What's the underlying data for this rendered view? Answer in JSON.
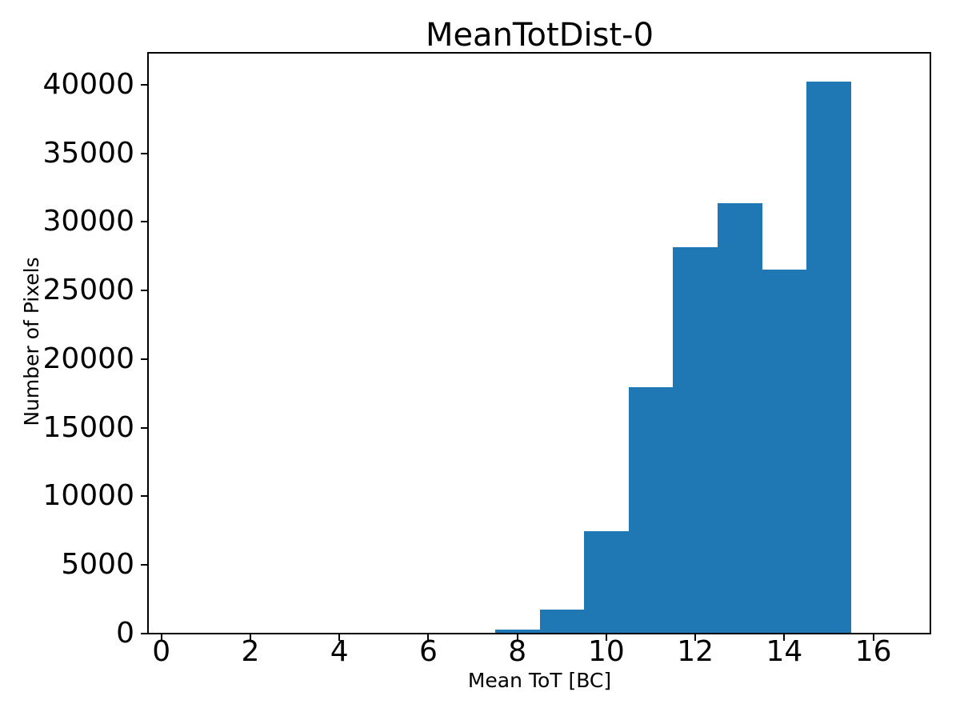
{
  "chart_data": {
    "type": "bar",
    "subtype": "histogram",
    "title": "MeanTotDist-0",
    "xlabel": "Mean ToT [BC]",
    "ylabel": "Number of Pixels",
    "bar_color": "#1f77b4",
    "text_color": "#000000",
    "background_color": "#ffffff",
    "bin_edges": [
      7.5,
      8.5,
      9.5,
      10.5,
      11.5,
      12.5,
      13.5,
      14.5,
      15.5
    ],
    "counts": [
      290,
      1750,
      7470,
      17980,
      28160,
      31380,
      26540,
      40230
    ],
    "xlim": [
      -0.3,
      17.3
    ],
    "ylim": [
      0,
      42330
    ],
    "xticks": [
      0,
      2,
      4,
      6,
      8,
      10,
      12,
      14,
      16
    ],
    "xtick_labels": [
      "0",
      "2",
      "4",
      "6",
      "8",
      "10",
      "12",
      "14",
      "16"
    ],
    "yticks": [
      0,
      5000,
      10000,
      15000,
      20000,
      25000,
      30000,
      35000,
      40000
    ],
    "ytick_labels": [
      "0",
      "5000",
      "10000",
      "15000",
      "20000",
      "25000",
      "30000",
      "35000",
      "40000"
    ],
    "grid": false,
    "legend": "none"
  }
}
